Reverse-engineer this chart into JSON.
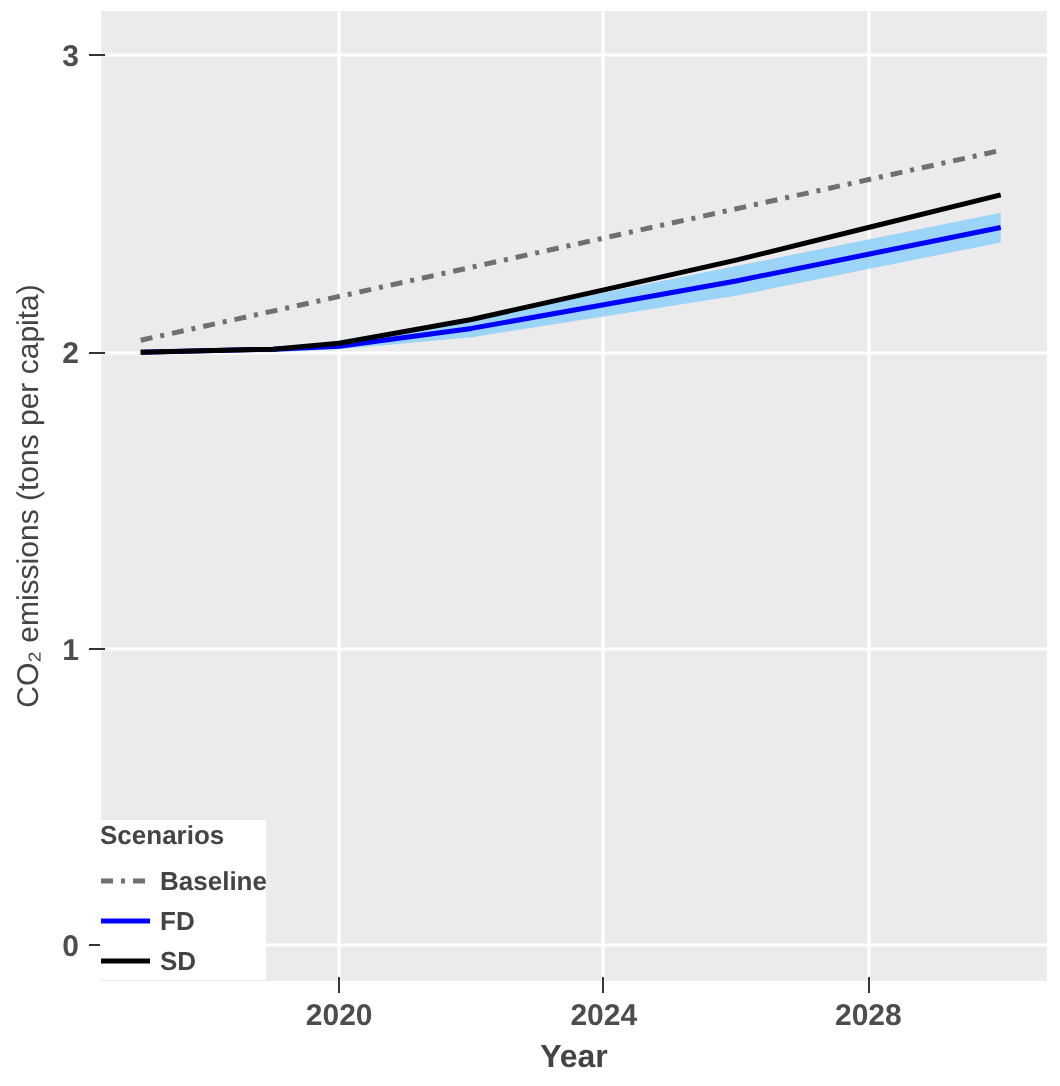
{
  "chart_data": {
    "type": "line",
    "xlabel": "Year",
    "ylabel": "CO₂ emissions (tons per capita)",
    "legend_title": "Scenarios",
    "x": [
      2017,
      2019,
      2020,
      2022,
      2024,
      2026,
      2028,
      2030
    ],
    "series": [
      {
        "name": "Baseline",
        "color": "#707070",
        "line_style": "dashed",
        "x": [
          2017,
          2030
        ],
        "values": [
          2.04,
          2.68
        ]
      },
      {
        "name": "FD",
        "color": "#0000ff",
        "values": [
          2.0,
          2.01,
          2.02,
          2.08,
          2.16,
          2.24,
          2.33,
          2.42
        ],
        "lower": [
          2.0,
          2.0,
          2.01,
          2.05,
          2.12,
          2.19,
          2.28,
          2.37
        ],
        "upper": [
          2.0,
          2.01,
          2.04,
          2.11,
          2.2,
          2.29,
          2.38,
          2.47
        ]
      },
      {
        "name": "SD",
        "color": "#000000",
        "values": [
          2.0,
          2.01,
          2.03,
          2.11,
          2.21,
          2.31,
          2.42,
          2.53
        ]
      }
    ],
    "xlim": [
      2016.4,
      2030.7
    ],
    "ylim": [
      -0.12,
      3.15
    ],
    "xticks": [
      2020,
      2024,
      2028
    ],
    "yticks": [
      0,
      1,
      2,
      3
    ],
    "grid": true,
    "legend": "bottom left"
  }
}
